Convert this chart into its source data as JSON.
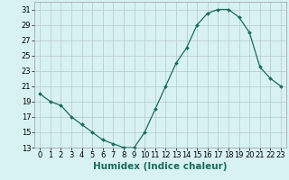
{
  "x": [
    0,
    1,
    2,
    3,
    4,
    5,
    6,
    7,
    8,
    9,
    10,
    11,
    12,
    13,
    14,
    15,
    16,
    17,
    18,
    19,
    20,
    21,
    22,
    23
  ],
  "y": [
    20,
    19,
    18.5,
    17,
    16,
    15,
    14,
    13.5,
    13,
    13,
    15,
    18,
    21,
    24,
    26,
    29,
    30.5,
    31,
    31,
    30,
    28,
    23.5,
    22,
    21
  ],
  "xlabel": "Humidex (Indice chaleur)",
  "ylim": [
    13,
    32
  ],
  "xlim": [
    -0.5,
    23.5
  ],
  "yticks": [
    13,
    15,
    17,
    19,
    21,
    23,
    25,
    27,
    29,
    31
  ],
  "xticks": [
    0,
    1,
    2,
    3,
    4,
    5,
    6,
    7,
    8,
    9,
    10,
    11,
    12,
    13,
    14,
    15,
    16,
    17,
    18,
    19,
    20,
    21,
    22,
    23
  ],
  "line_color": "#1a6b5a",
  "marker": "D",
  "marker_size": 2.0,
  "bg_color": "#d8f2f2",
  "grid_color": "#b8c8c8",
  "xlabel_fontsize": 7.5,
  "tick_fontsize": 6.0,
  "xlabel_color": "#1a6b5a"
}
